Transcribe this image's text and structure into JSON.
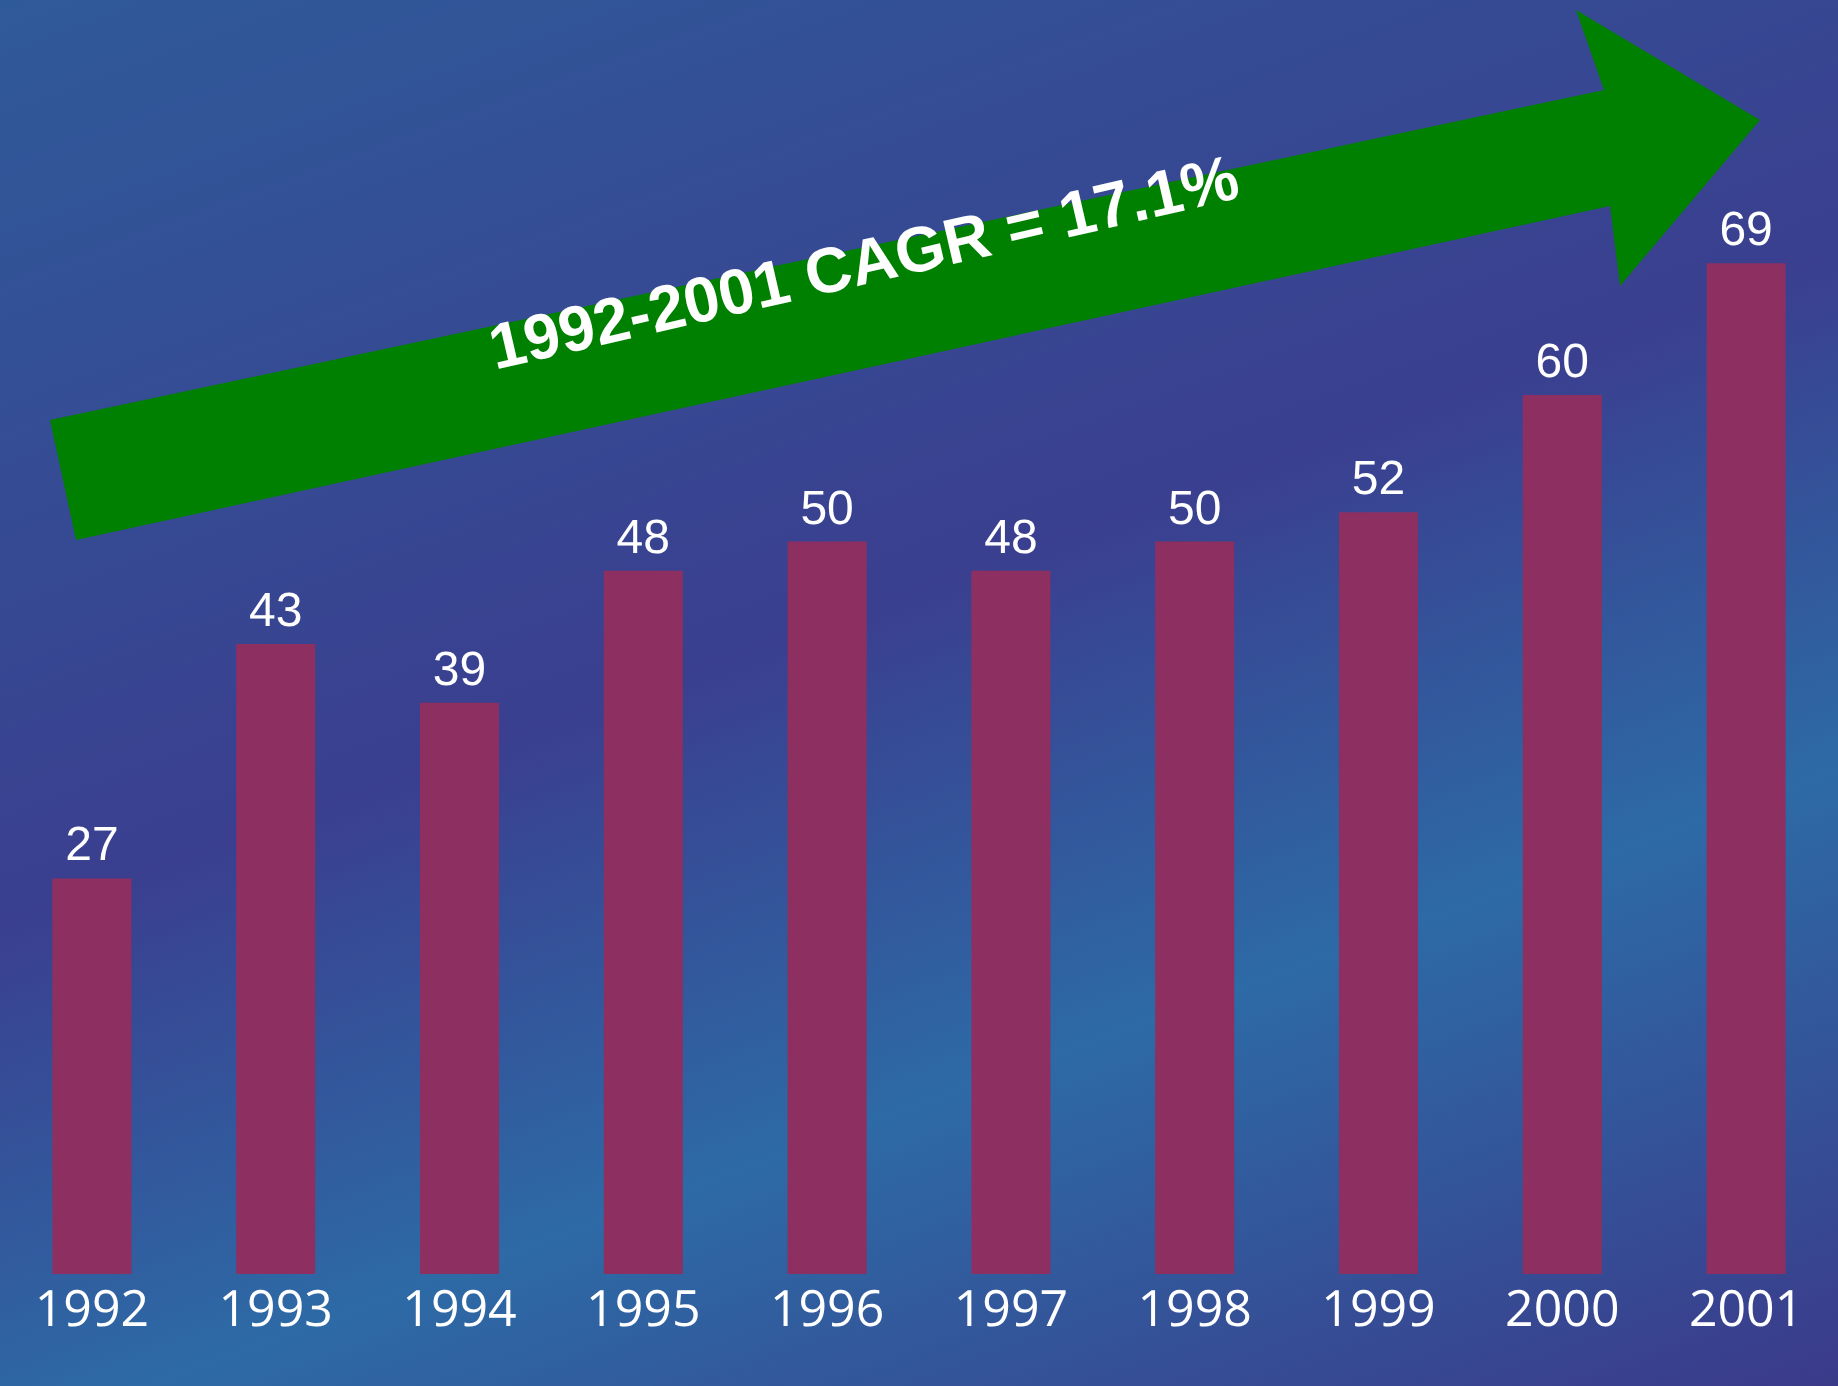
{
  "chart_data": {
    "type": "bar",
    "categories": [
      "1992",
      "1993",
      "1994",
      "1995",
      "1996",
      "1997",
      "1998",
      "1999",
      "2000",
      "2001"
    ],
    "values": [
      27,
      43,
      39,
      48,
      50,
      48,
      50,
      52,
      60,
      69
    ],
    "color": "#8e2f62",
    "data_labels": true,
    "annotations": [
      "1992-2001 CAGR = 17.1%"
    ]
  }
}
